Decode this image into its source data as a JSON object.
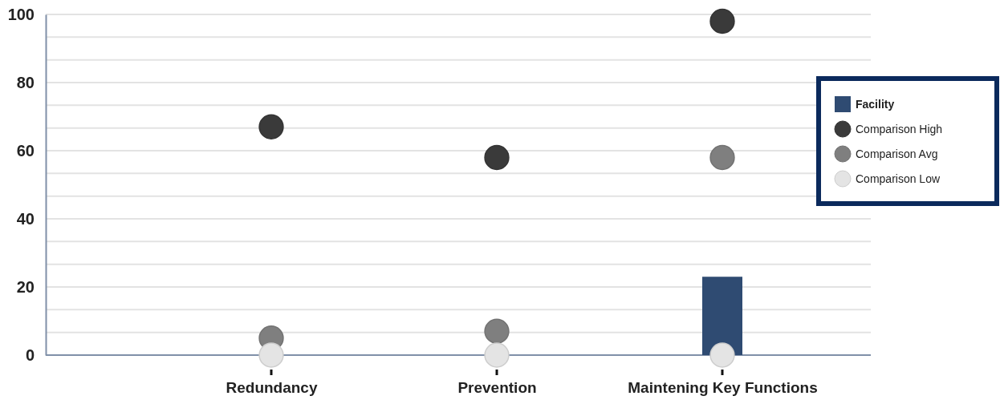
{
  "chart_data": {
    "type": "bar",
    "categories": [
      "Redundancy",
      "Prevention",
      "Maintening Key Functions"
    ],
    "series": [
      {
        "name": "Facility",
        "color": "#2f4b72",
        "values": [
          null,
          null,
          23
        ]
      },
      {
        "name": "Comparison High",
        "type": "scatter",
        "color": "#3a3a3a",
        "values": [
          67,
          58,
          98
        ]
      },
      {
        "name": "Comparison Avg",
        "type": "scatter",
        "color": "#7f7f7f",
        "values": [
          5,
          7,
          58
        ]
      },
      {
        "name": "Comparison Low",
        "type": "scatter",
        "color": "#e4e4e4",
        "values": [
          0,
          0,
          0
        ]
      }
    ],
    "ylim": [
      0,
      100
    ],
    "yticks": [
      0,
      {
        "value": 6.67,
        "label": null
      },
      {
        "value": 13.33,
        "label": null
      },
      20,
      {
        "value": 26.67,
        "label": null
      },
      {
        "value": 33.33,
        "label": null
      },
      40,
      {
        "value": 46.67,
        "label": null
      },
      {
        "value": 53.33,
        "label": null
      },
      60,
      {
        "value": 66.67,
        "label": null
      },
      {
        "value": 73.33,
        "label": null
      },
      80,
      {
        "value": 86.67,
        "label": null
      },
      {
        "value": 93.33,
        "label": null
      },
      100
    ],
    "grid": true,
    "legend": "right",
    "marker": "circle"
  }
}
